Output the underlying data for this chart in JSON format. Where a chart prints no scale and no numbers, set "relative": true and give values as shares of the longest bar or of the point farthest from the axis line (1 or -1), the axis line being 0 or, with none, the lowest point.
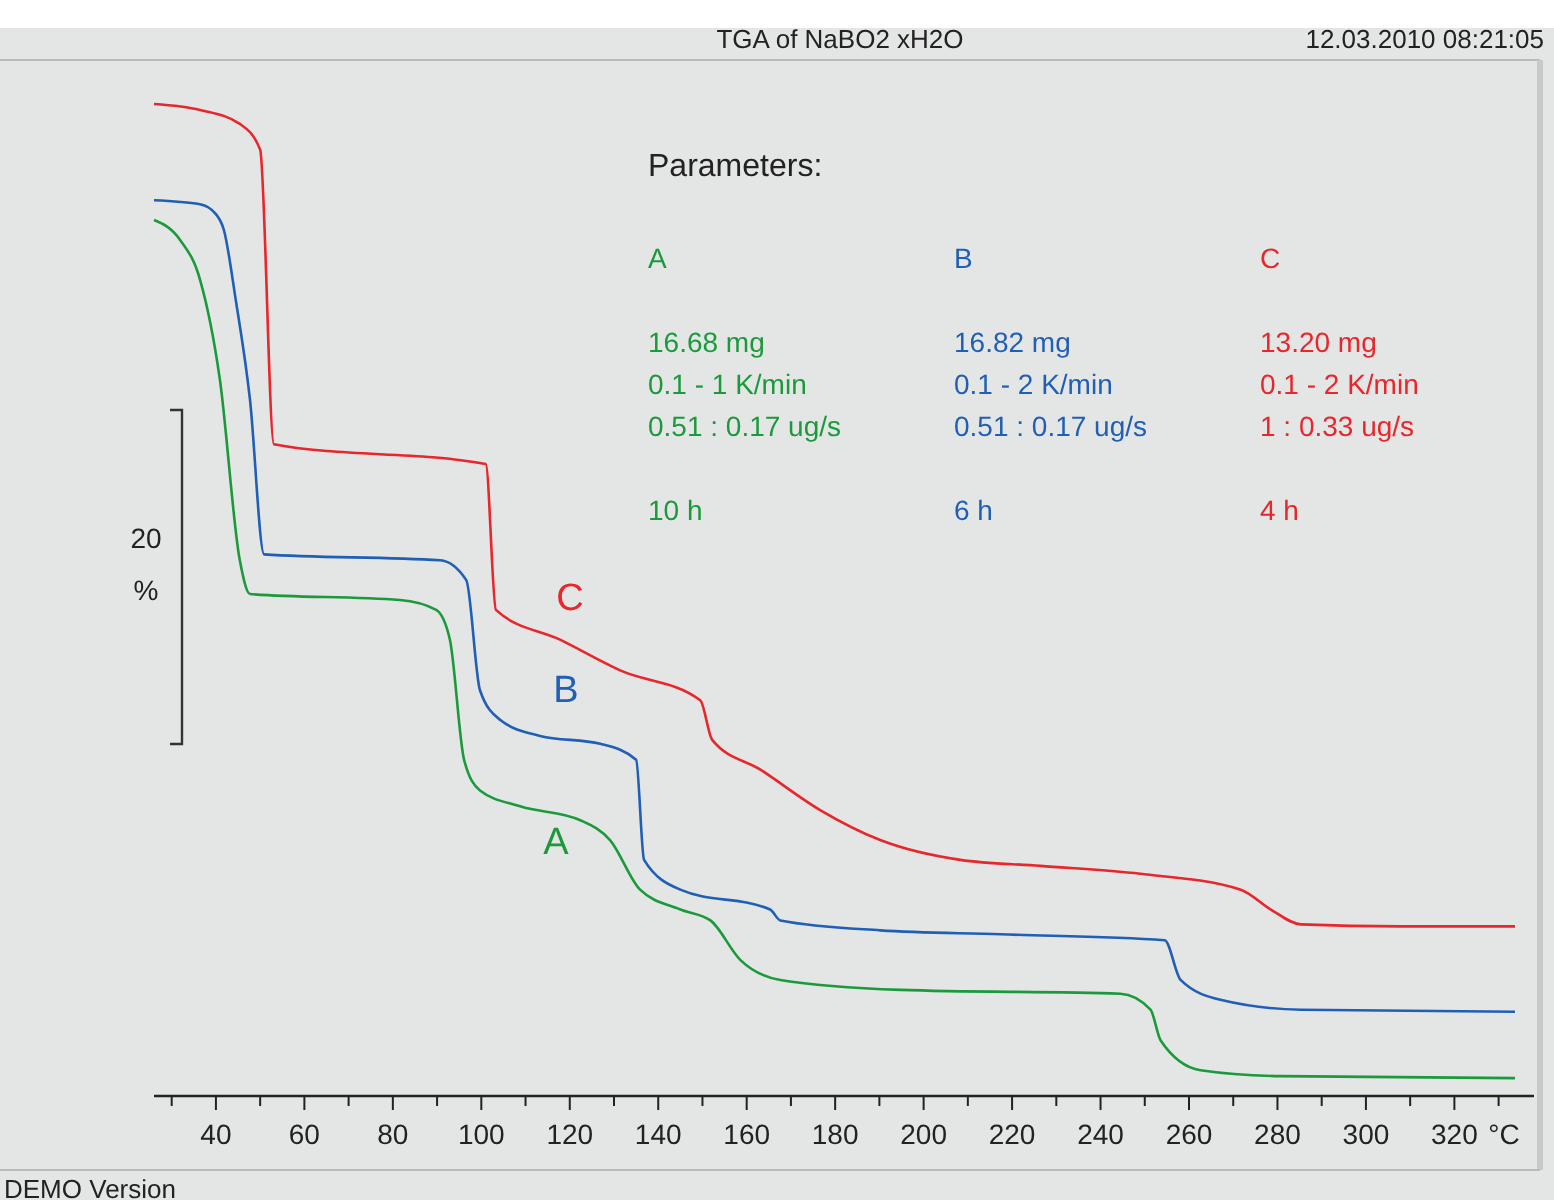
{
  "chart_data": {
    "type": "line",
    "title": "TGA of NaBO2 xH2O",
    "xlabel": "°C",
    "relative": true,
    "line_style": "solid",
    "xlim": [
      26,
      338
    ],
    "xticks": [
      {
        "value": 30,
        "label": null
      },
      40,
      {
        "value": 50,
        "label": null
      },
      60,
      {
        "value": 70,
        "label": null
      },
      80,
      {
        "value": 90,
        "label": null
      },
      100,
      {
        "value": 110,
        "label": null
      },
      120,
      {
        "value": 130,
        "label": null
      },
      140,
      {
        "value": 150,
        "label": null
      },
      160,
      {
        "value": 170,
        "label": null
      },
      180,
      {
        "value": 190,
        "label": null
      },
      200,
      {
        "value": 210,
        "label": null
      },
      220,
      {
        "value": 230,
        "label": null
      },
      240,
      {
        "value": 250,
        "label": null
      },
      260,
      {
        "value": 270,
        "label": null
      },
      280,
      {
        "value": 290,
        "label": null
      },
      300,
      {
        "value": 310,
        "label": null
      },
      320,
      {
        "value": 330,
        "label": null
      }
    ],
    "series": [
      {
        "name": "C",
        "color": "#e8262b",
        "x": [
          26,
          36.4,
          45.4,
          50,
          53.1,
          101,
          103.3,
          117.8,
          131.4,
          149.5,
          152.2,
          163.1,
          176.7,
          190.2,
          208.3,
          226.4,
          249,
          271.7,
          278.5,
          285.3,
          307.9,
          333.7
        ],
        "values": [
          1.0,
          0.994,
          0.98,
          0.954,
          0.657,
          0.637,
          0.49,
          0.46,
          0.429,
          0.399,
          0.359,
          0.329,
          0.288,
          0.258,
          0.238,
          0.232,
          0.224,
          0.208,
          0.188,
          0.173,
          0.171,
          0.171
        ]
      },
      {
        "name": "B",
        "color": "#1f5fb5",
        "x": [
          26,
          36.4,
          40,
          41.8,
          44.5,
          47.7,
          50.9,
          90.7,
          96.6,
          99.7,
          104.3,
          113.3,
          126.9,
          135,
          136.8,
          145,
          165.3,
          167.6,
          190.2,
          217.4,
          254.5,
          258.1,
          267.1,
          285.3,
          333.7
        ],
        "values": [
          0.903,
          0.899,
          0.889,
          0.873,
          0.802,
          0.702,
          0.546,
          0.54,
          0.52,
          0.409,
          0.379,
          0.363,
          0.355,
          0.339,
          0.238,
          0.208,
          0.188,
          0.177,
          0.167,
          0.163,
          0.157,
          0.117,
          0.097,
          0.087,
          0.085
        ]
      },
      {
        "name": "A",
        "color": "#1a9a3a",
        "x": [
          26,
          31.9,
          36.4,
          40.9,
          45.4,
          47.7,
          81.6,
          89.8,
          92.9,
          96.1,
          99.7,
          108.8,
          122.4,
          129.1,
          135.9,
          145,
          151.8,
          158.6,
          167.6,
          194.8,
          244.5,
          251.3,
          253.6,
          262.6,
          280.7,
          333.7
        ],
        "values": [
          0.883,
          0.863,
          0.823,
          0.722,
          0.54,
          0.506,
          0.5,
          0.49,
          0.46,
          0.339,
          0.308,
          0.292,
          0.278,
          0.258,
          0.208,
          0.188,
          0.177,
          0.137,
          0.117,
          0.107,
          0.103,
          0.087,
          0.056,
          0.026,
          0.02,
          0.018
        ]
      }
    ],
    "annotations": [
      "Parameters:",
      "A",
      "B",
      "C",
      "16.68 mg",
      "16.82 mg",
      "13.20 mg",
      "0.1 - 1 K/min",
      "0.1 - 2 K/min",
      "0.1 - 2 K/min",
      "0.51 : 0.17 ug/s",
      "0.51 : 0.17 ug/s",
      "1 : 0.33 ug/s",
      "10 h",
      "6 h",
      "4 h",
      "12.03.2010 08:21:05",
      "DEMO Version",
      "20",
      "%"
    ]
  }
}
